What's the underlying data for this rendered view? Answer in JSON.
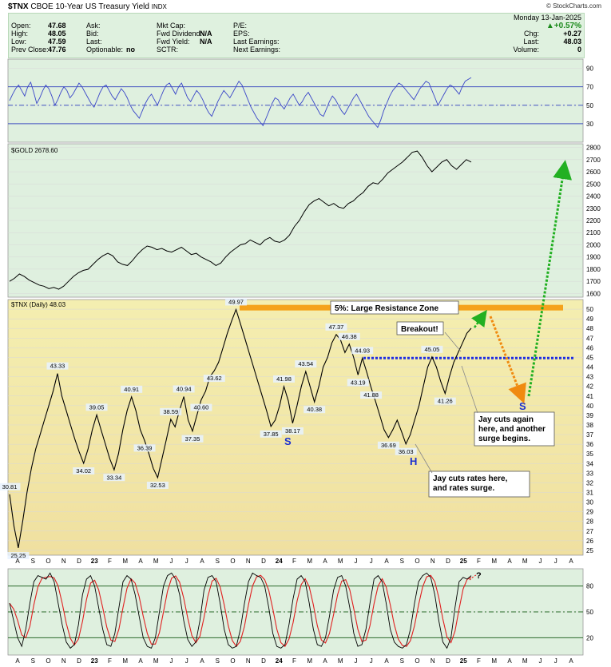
{
  "header": {
    "symbol": "$TNX",
    "name": "CBOE 10-Year US Treasury Yield",
    "exchange": "INDX",
    "watermark": "© StockCharts.com",
    "date": "Monday 13-Jan-2025",
    "left": [
      {
        "label": "Open:",
        "value": "47.68"
      },
      {
        "label": "High:",
        "value": "48.05"
      },
      {
        "label": "Low:",
        "value": "47.59"
      },
      {
        "label": "Prev Close:",
        "value": "47.76"
      }
    ],
    "mid1": [
      {
        "label": "Ask:",
        "value": ""
      },
      {
        "label": "Bid:",
        "value": ""
      },
      {
        "label": "Last:",
        "value": ""
      },
      {
        "label": "Optionable:",
        "value": "no"
      }
    ],
    "mid2": [
      {
        "label": "Mkt Cap:",
        "value": ""
      },
      {
        "label": "Fwd Dividend:",
        "value": "N/A"
      },
      {
        "label": "Fwd Yield:",
        "value": "N/A"
      },
      {
        "label": "SCTR:",
        "value": ""
      }
    ],
    "mid3": [
      {
        "label": "P/E:"
      },
      {
        "label": "EPS:"
      },
      {
        "label": "Last Earnings:"
      },
      {
        "label": "Next Earnings:"
      }
    ],
    "change_pct": "+0.57%",
    "right": [
      {
        "label": "Chg:",
        "value": "+0.27"
      },
      {
        "label": "Last:",
        "value": "48.03"
      },
      {
        "label": "Volume:",
        "value": "0"
      }
    ],
    "up_color": "#1a8a1a"
  },
  "chart_data": [
    {
      "type": "line",
      "panel": "rsi",
      "ticks": [
        "90",
        "70",
        "50",
        "30"
      ],
      "ylim": [
        10,
        100
      ],
      "levels": [
        70,
        50,
        30
      ],
      "color": "#3a46c8",
      "values": [
        55,
        62,
        68,
        72,
        66,
        60,
        70,
        75,
        64,
        52,
        58,
        66,
        72,
        68,
        60,
        50,
        56,
        64,
        70,
        66,
        58,
        62,
        68,
        74,
        70,
        64,
        58,
        52,
        48,
        56,
        64,
        70,
        72,
        66,
        60,
        56,
        62,
        68,
        64,
        58,
        50,
        44,
        40,
        36,
        44,
        52,
        58,
        62,
        56,
        50,
        58,
        66,
        72,
        74,
        68,
        62,
        70,
        74,
        66,
        58,
        54,
        60,
        66,
        62,
        56,
        48,
        42,
        38,
        46,
        54,
        60,
        66,
        62,
        58,
        64,
        70,
        76,
        72,
        64,
        56,
        48,
        42,
        36,
        32,
        28,
        36,
        44,
        52,
        58,
        56,
        50,
        46,
        52,
        58,
        62,
        56,
        50,
        54,
        60,
        64,
        58,
        52,
        46,
        40,
        38,
        46,
        54,
        60,
        56,
        50,
        44,
        40,
        46,
        52,
        58,
        62,
        56,
        50,
        44,
        38,
        34,
        30,
        26,
        34,
        44,
        52,
        60,
        66,
        70,
        74,
        72,
        68,
        64,
        60,
        56,
        62,
        68,
        72,
        76,
        74,
        66,
        58,
        50,
        56,
        62,
        68,
        72,
        70,
        66,
        62,
        70,
        76,
        78,
        80
      ]
    },
    {
      "type": "line",
      "panel": "gold",
      "legend": "$GOLD 2678.60",
      "ticks": [
        "2800",
        "2700",
        "2600",
        "2500",
        "2400",
        "2300",
        "2200",
        "2100",
        "2000",
        "1900",
        "1800",
        "1700",
        "1600"
      ],
      "ylim": [
        1570,
        2830
      ],
      "color": "#000000",
      "values": [
        1700,
        1725,
        1760,
        1740,
        1710,
        1690,
        1670,
        1660,
        1640,
        1650,
        1635,
        1660,
        1700,
        1740,
        1770,
        1790,
        1800,
        1840,
        1880,
        1910,
        1930,
        1910,
        1860,
        1840,
        1830,
        1870,
        1920,
        1960,
        1990,
        1980,
        1960,
        1970,
        1950,
        1940,
        1960,
        1980,
        1950,
        1920,
        1930,
        1900,
        1880,
        1860,
        1830,
        1850,
        1900,
        1940,
        1970,
        2000,
        2010,
        2040,
        2020,
        2000,
        2040,
        2060,
        2030,
        2020,
        2040,
        2080,
        2150,
        2200,
        2270,
        2330,
        2360,
        2380,
        2350,
        2320,
        2340,
        2310,
        2300,
        2340,
        2360,
        2400,
        2430,
        2480,
        2510,
        2500,
        2540,
        2590,
        2620,
        2650,
        2680,
        2720,
        2760,
        2770,
        2720,
        2650,
        2600,
        2640,
        2680,
        2700,
        2650,
        2620,
        2660,
        2700,
        2680
      ]
    },
    {
      "type": "line",
      "panel": "main",
      "legend": "$TNX (Daily) 48.03",
      "ticks": [
        "50",
        "49",
        "48",
        "47",
        "46",
        "45",
        "44",
        "43",
        "42",
        "41",
        "40",
        "39",
        "38",
        "37",
        "36",
        "35",
        "34",
        "33",
        "32",
        "31",
        "30",
        "29",
        "28",
        "27",
        "26",
        "25"
      ],
      "ylim": [
        24.5,
        51
      ],
      "x_ticks": [
        "A",
        "S",
        "O",
        "N",
        "D",
        "23",
        "F",
        "M",
        "A",
        "M",
        "J",
        "J",
        "A",
        "S",
        "O",
        "N",
        "D",
        "24",
        "F",
        "M",
        "A",
        "M",
        "J",
        "J",
        "A",
        "S",
        "O",
        "N",
        "D",
        "25",
        "F",
        "M",
        "A",
        "M",
        "J",
        "J",
        "A"
      ],
      "color": "#000000",
      "values": [
        30.81,
        27.5,
        25.25,
        28,
        31,
        33.5,
        35.5,
        37,
        38.5,
        40,
        41.5,
        43.33,
        41,
        39.5,
        38,
        36.5,
        35.2,
        34.02,
        35.5,
        37.5,
        39.05,
        37.5,
        36,
        34.5,
        33.34,
        35,
        37.5,
        39.5,
        40.91,
        39.5,
        37.5,
        36.39,
        35,
        33.5,
        32.53,
        34.5,
        36.5,
        38.59,
        37.8,
        39.5,
        40.94,
        38.5,
        37.35,
        39,
        40.6,
        41.5,
        43,
        43.62,
        44.5,
        46,
        47.5,
        48.8,
        49.97,
        48.5,
        47,
        45.5,
        44,
        42.5,
        41,
        39.5,
        37.85,
        38.5,
        40,
        41.98,
        40.5,
        38.17,
        40,
        42,
        43.54,
        42,
        40.38,
        42,
        44,
        45,
        46.5,
        47.37,
        46.8,
        45.5,
        46.38,
        45,
        43.19,
        44.93,
        43.5,
        41.88,
        40.5,
        39,
        37.5,
        36.69,
        37.5,
        38.5,
        37.3,
        36.03,
        37,
        38.5,
        40,
        42,
        44,
        45.05,
        44,
        42.5,
        41.26,
        43,
        44.5,
        45.5,
        46.5,
        47.5,
        48.03
      ],
      "highlights": [
        {
          "label": "30.81"
        },
        {
          "label": "25.25"
        },
        {
          "label": "43.33"
        },
        {
          "label": "34.02"
        },
        {
          "label": "39.05"
        },
        {
          "label": "33.34"
        },
        {
          "label": "40.91"
        },
        {
          "label": "36.39"
        },
        {
          "label": "32.53"
        },
        {
          "label": "38.59"
        },
        {
          "label": "40.94"
        },
        {
          "label": "37.35"
        },
        {
          "label": "40.60"
        },
        {
          "label": "43.62"
        },
        {
          "label": "49.97"
        },
        {
          "label": "37.85"
        },
        {
          "label": "41.98"
        },
        {
          "label": "38.17"
        },
        {
          "label": "43.54"
        },
        {
          "label": "40.38"
        },
        {
          "label": "47.37"
        },
        {
          "label": "46.38"
        },
        {
          "label": "43.19"
        },
        {
          "label": "44.93"
        },
        {
          "label": "41.88"
        },
        {
          "label": "36.69"
        },
        {
          "label": "36.03"
        },
        {
          "label": "45.05"
        },
        {
          "label": "41.26"
        }
      ],
      "resistance_level": 50.2,
      "breakout_level": 44.93,
      "annotations": {
        "resistance": "5%: Large Resistance Zone",
        "breakout": "Breakout!",
        "jay_again": "Jay cuts again here, and another surge begins.",
        "jay_cuts": "Jay cuts rates here, and rates surge.",
        "s1": "S",
        "h": "H",
        "s2": "S"
      }
    },
    {
      "type": "line",
      "panel": "stochastic",
      "ticks": [
        "80",
        "50",
        "20"
      ],
      "ylim": [
        0,
        100
      ],
      "levels": [
        80,
        50,
        20
      ],
      "colors": {
        "k": "#000000",
        "d": "#e02020"
      },
      "x_ticks": [
        "A",
        "S",
        "O",
        "N",
        "D",
        "23",
        "F",
        "M",
        "A",
        "M",
        "J",
        "J",
        "A",
        "S",
        "O",
        "N",
        "D",
        "24",
        "F",
        "M",
        "A",
        "M",
        "J",
        "J",
        "A",
        "S",
        "O",
        "N",
        "D",
        "25",
        "F",
        "M",
        "A",
        "M",
        "J",
        "J",
        "A"
      ],
      "question": "?",
      "values": [
        60,
        40,
        20,
        10,
        30,
        60,
        85,
        92,
        90,
        88,
        95,
        85,
        60,
        35,
        15,
        8,
        12,
        35,
        70,
        88,
        92,
        80,
        55,
        30,
        12,
        10,
        25,
        55,
        85,
        92,
        88,
        70,
        45,
        20,
        10,
        8,
        20,
        50,
        80,
        92,
        95,
        88,
        70,
        40,
        18,
        10,
        15,
        40,
        75,
        90,
        92,
        85,
        60,
        30,
        12,
        8,
        10,
        30,
        60,
        85,
        95,
        92,
        90,
        80,
        55,
        25,
        10,
        8,
        12,
        35,
        65,
        88,
        92,
        85,
        60,
        30,
        12,
        10,
        20,
        45,
        75,
        90,
        92,
        80,
        55,
        25,
        10,
        12,
        30,
        60,
        88,
        92,
        85,
        60,
        30,
        15,
        10,
        8,
        12,
        30,
        60,
        85,
        92,
        95,
        90,
        70,
        40,
        15,
        8,
        20,
        55,
        85,
        90,
        88,
        92
      ]
    }
  ]
}
